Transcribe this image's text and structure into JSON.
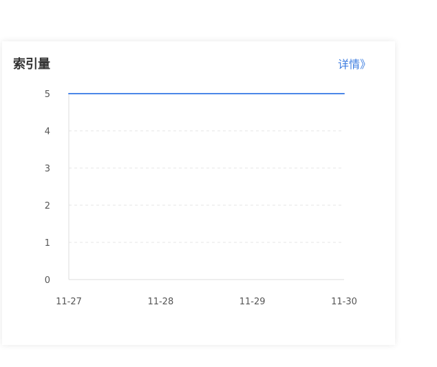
{
  "card": {
    "title": "索引量",
    "link_label": "详情》"
  },
  "colors": {
    "line": "#4a86e8",
    "link": "#3d7de0",
    "grid": "#e4e4e4",
    "axis": "#dddddd",
    "text": "#555555"
  },
  "chart_data": {
    "type": "line",
    "categories": [
      "11-27",
      "11-28",
      "11-29",
      "11-30"
    ],
    "series": [
      {
        "values": [
          5,
          5,
          5,
          5
        ]
      }
    ],
    "yticks": [
      0,
      1,
      2,
      3,
      4,
      5
    ],
    "ylim": [
      0,
      5
    ],
    "grid": true,
    "grid_style": "dashed"
  }
}
